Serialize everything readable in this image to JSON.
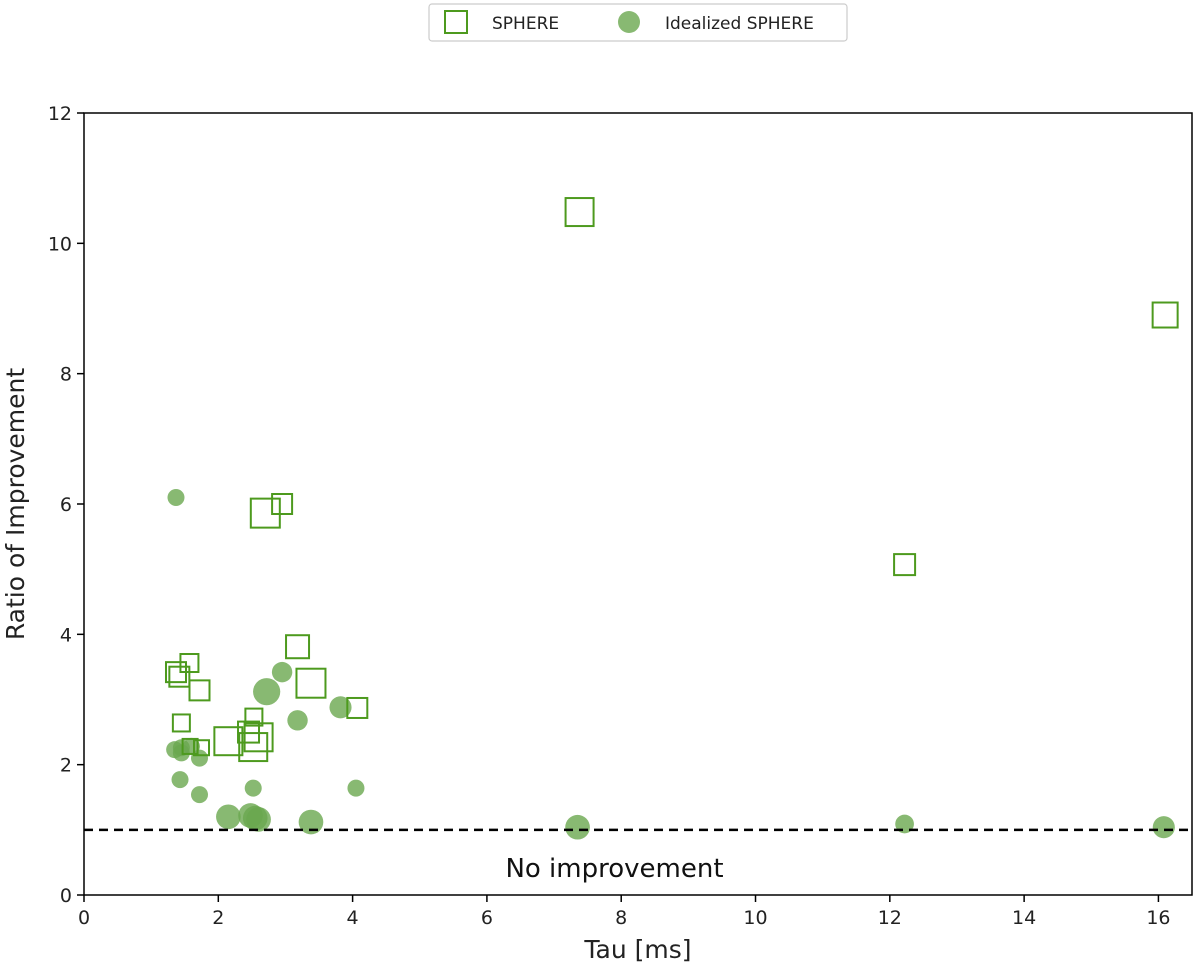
{
  "chart_data": {
    "type": "scatter",
    "xlabel": "Tau [ms]",
    "ylabel": "Ratio of Improvement",
    "xlim": [
      0,
      16.5
    ],
    "ylim": [
      0,
      12
    ],
    "xticks": [
      0,
      2,
      4,
      6,
      8,
      10,
      12,
      14,
      16
    ],
    "yticks": [
      0,
      2,
      4,
      6,
      8,
      10,
      12
    ],
    "grid": false,
    "legend_position": "top-center",
    "reference_line": {
      "y": 1.0,
      "style": "dashed",
      "label": "No improvement"
    },
    "series": [
      {
        "name": "SPHERE",
        "marker": "hollow-square",
        "color": "#4d9a1e",
        "points": [
          {
            "x": 7.38,
            "y": 10.48,
            "size": 1.4
          },
          {
            "x": 16.1,
            "y": 8.9,
            "size": 1.25
          },
          {
            "x": 12.22,
            "y": 5.07,
            "size": 1.05
          },
          {
            "x": 2.95,
            "y": 6.0,
            "size": 1.0
          },
          {
            "x": 2.7,
            "y": 5.86,
            "size": 1.45
          },
          {
            "x": 1.37,
            "y": 3.42,
            "size": 1.0
          },
          {
            "x": 1.42,
            "y": 3.35,
            "size": 1.0
          },
          {
            "x": 1.57,
            "y": 3.56,
            "size": 0.9
          },
          {
            "x": 1.72,
            "y": 3.14,
            "size": 1.0
          },
          {
            "x": 3.18,
            "y": 3.81,
            "size": 1.15
          },
          {
            "x": 3.38,
            "y": 3.25,
            "size": 1.45
          },
          {
            "x": 4.07,
            "y": 2.87,
            "size": 1.0
          },
          {
            "x": 1.45,
            "y": 2.64,
            "size": 0.85
          },
          {
            "x": 2.53,
            "y": 2.73,
            "size": 0.85
          },
          {
            "x": 2.45,
            "y": 2.5,
            "size": 1.05
          },
          {
            "x": 2.6,
            "y": 2.42,
            "size": 1.4
          },
          {
            "x": 2.15,
            "y": 2.36,
            "size": 1.4
          },
          {
            "x": 2.52,
            "y": 2.27,
            "size": 1.4
          },
          {
            "x": 1.75,
            "y": 2.26,
            "size": 0.75
          },
          {
            "x": 1.58,
            "y": 2.28,
            "size": 0.75
          }
        ]
      },
      {
        "name": "Idealized SPHERE",
        "marker": "filled-circle",
        "color": "#6aa84f",
        "points": [
          {
            "x": 1.37,
            "y": 6.1,
            "size": 1.0
          },
          {
            "x": 2.72,
            "y": 3.12,
            "size": 1.6
          },
          {
            "x": 2.95,
            "y": 3.42,
            "size": 1.2
          },
          {
            "x": 3.18,
            "y": 2.68,
            "size": 1.2
          },
          {
            "x": 3.82,
            "y": 2.88,
            "size": 1.3
          },
          {
            "x": 1.35,
            "y": 2.23,
            "size": 1.0
          },
          {
            "x": 1.45,
            "y": 2.26,
            "size": 1.0
          },
          {
            "x": 1.6,
            "y": 2.28,
            "size": 1.0
          },
          {
            "x": 1.45,
            "y": 2.18,
            "size": 1.0
          },
          {
            "x": 1.72,
            "y": 2.1,
            "size": 1.0
          },
          {
            "x": 1.43,
            "y": 1.77,
            "size": 1.0
          },
          {
            "x": 1.72,
            "y": 1.54,
            "size": 1.0
          },
          {
            "x": 2.52,
            "y": 1.64,
            "size": 1.0
          },
          {
            "x": 4.05,
            "y": 1.64,
            "size": 1.0
          },
          {
            "x": 2.15,
            "y": 1.2,
            "size": 1.45
          },
          {
            "x": 2.48,
            "y": 1.22,
            "size": 1.45
          },
          {
            "x": 2.55,
            "y": 1.18,
            "size": 1.45
          },
          {
            "x": 2.6,
            "y": 1.16,
            "size": 1.45
          },
          {
            "x": 3.38,
            "y": 1.12,
            "size": 1.45
          },
          {
            "x": 7.35,
            "y": 1.04,
            "size": 1.45
          },
          {
            "x": 12.22,
            "y": 1.09,
            "size": 1.1
          },
          {
            "x": 16.08,
            "y": 1.04,
            "size": 1.3
          }
        ]
      }
    ]
  }
}
